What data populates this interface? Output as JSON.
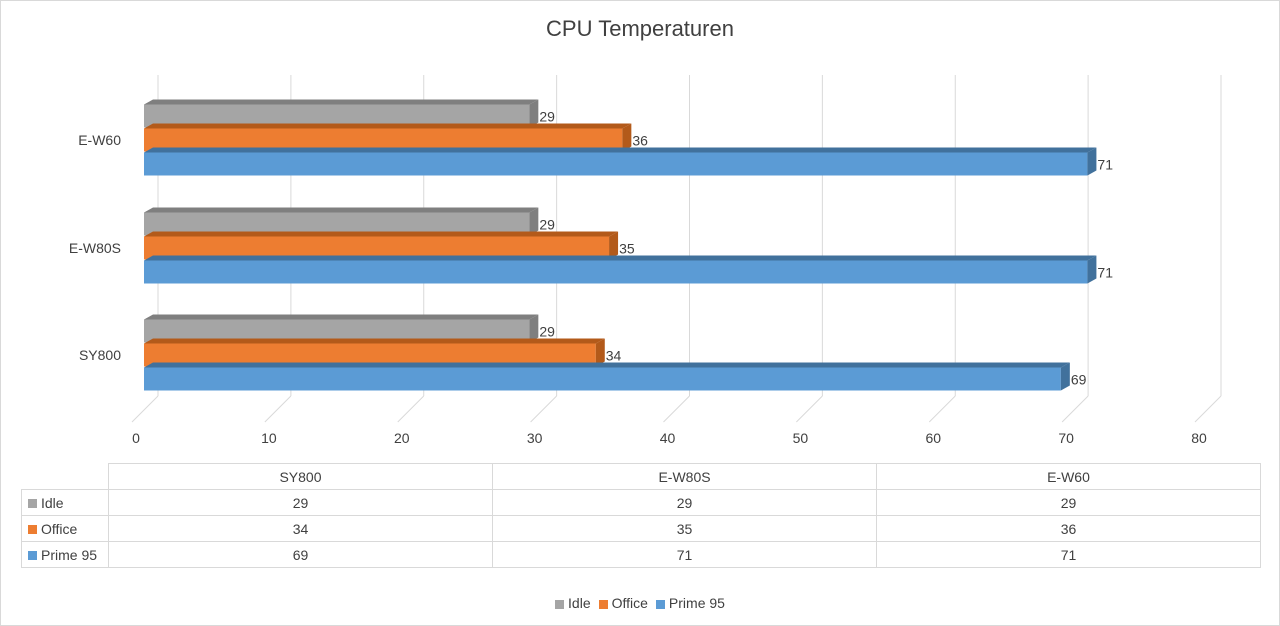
{
  "chart_data": {
    "type": "bar",
    "orientation": "horizontal",
    "style": "3d-clustered",
    "title": "CPU Temperaturen",
    "categories": [
      "SY800",
      "E-W80S",
      "E-W60"
    ],
    "series": [
      {
        "name": "Idle",
        "values": [
          29,
          29,
          29
        ],
        "color": "#a5a5a5",
        "dark": "#7f7f7f"
      },
      {
        "name": "Office",
        "values": [
          34,
          35,
          36
        ],
        "color": "#ed7d31",
        "dark": "#b35a1a"
      },
      {
        "name": "Prime 95",
        "values": [
          69,
          71,
          71
        ],
        "color": "#5b9bd5",
        "dark": "#41719c"
      }
    ],
    "xlim": [
      0,
      80
    ],
    "xticks": [
      0,
      10,
      20,
      30,
      40,
      50,
      60,
      70,
      80
    ],
    "grid": true,
    "data_table": true,
    "legend": "bottom"
  }
}
